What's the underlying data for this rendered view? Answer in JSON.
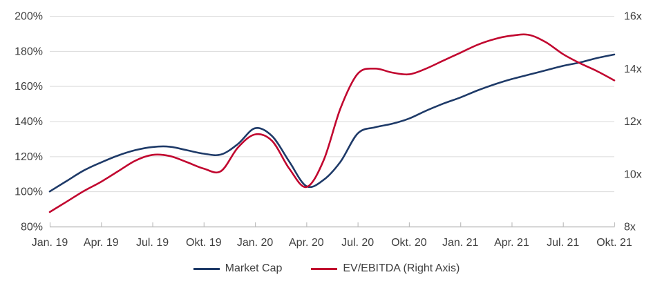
{
  "chart_data": {
    "type": "line",
    "title": "",
    "x_axis": {
      "tick_labels": [
        "Jan. 19",
        "Apr. 19",
        "Jul. 19",
        "Okt. 19",
        "Jan. 20",
        "Apr. 20",
        "Jul. 20",
        "Okt. 20",
        "Jan. 21",
        "Apr. 21",
        "Jul. 21",
        "Okt. 21"
      ],
      "points_per_tick": 3,
      "granularity": "monthly"
    },
    "left_axis": {
      "tick_labels": [
        "200%",
        "180%",
        "160%",
        "140%",
        "120%",
        "100%",
        "80%"
      ],
      "max": 200,
      "min": 80,
      "unit": "%"
    },
    "right_axis": {
      "tick_labels": [
        "16x",
        "14x",
        "12x",
        "10x",
        "8x"
      ],
      "max": 16,
      "min": 8,
      "unit": "x"
    },
    "series": [
      {
        "name": "Market Cap",
        "axis": "left",
        "color": "#1e3a68",
        "values": [
          100,
          106,
          112,
          116.5,
          120.5,
          123.5,
          125.3,
          125.5,
          123.5,
          121.5,
          121,
          127,
          136,
          131.5,
          117,
          103,
          106.5,
          117,
          133,
          136.5,
          138.5,
          141.5,
          146,
          150,
          153.5,
          157.5,
          161,
          164,
          166.5,
          169,
          171.5,
          173.5,
          176,
          178
        ]
      },
      {
        "name": "EV/EBITDA (Right Axis)",
        "axis": "right",
        "color": "#c1062f",
        "values": [
          8.55,
          8.95,
          9.35,
          9.7,
          10.1,
          10.5,
          10.72,
          10.68,
          10.45,
          10.2,
          10.1,
          11.0,
          11.5,
          11.25,
          10.2,
          9.5,
          10.5,
          12.5,
          13.8,
          14.0,
          13.85,
          13.78,
          14.0,
          14.3,
          14.6,
          14.9,
          15.12,
          15.25,
          15.28,
          15.0,
          14.55,
          14.2,
          13.9,
          13.55
        ]
      }
    ],
    "grid": "horizontal",
    "legend_position": "bottom"
  },
  "colors": {
    "grid": "#d9d9d9",
    "axis": "#bfbfbf",
    "text": "#404040",
    "background": "#ffffff"
  }
}
